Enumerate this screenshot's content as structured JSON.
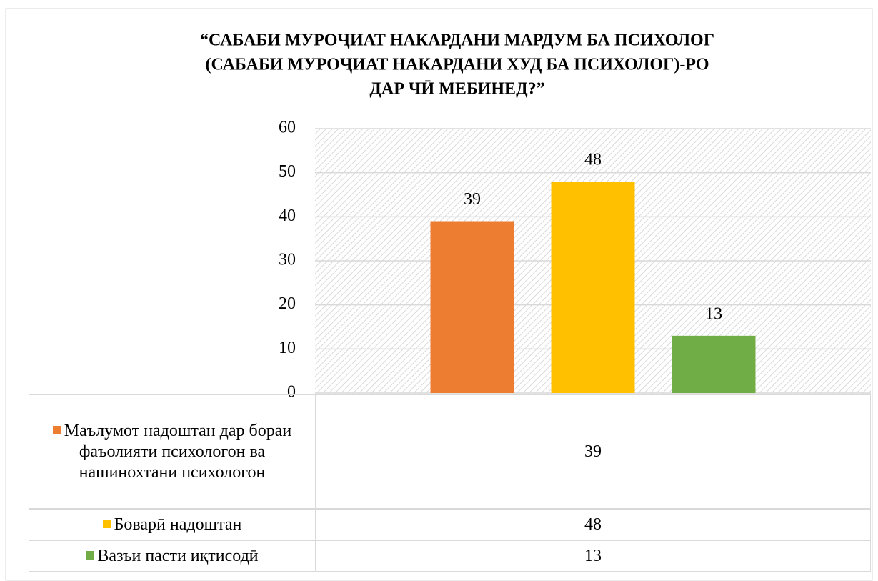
{
  "chart_data": {
    "type": "bar",
    "title": [
      "“САБАБИ МУРОҶИАТ НАКАРДАНИ МАРДУМ БА ПСИХОЛОГ",
      "(САБАБИ МУРОҶИАТ НАКАРДАНИ ХУД БА ПСИХОЛОГ)-РО",
      "ДАР ЧӢ МЕБИНЕД?”"
    ],
    "categories": [
      null
    ],
    "series": [
      {
        "name": "Маълумот надоштан дар бораи фаъолияти психологон ва нашинохтани психологон",
        "color": "#ed7d31",
        "values": [
          39
        ]
      },
      {
        "name": "Боварӣ надоштан",
        "color": "#ffc000",
        "values": [
          48
        ]
      },
      {
        "name": "Вазъи пасти иқтисодӣ",
        "color": "#70ad47",
        "values": [
          13
        ]
      }
    ],
    "ylim": [
      0,
      60
    ],
    "yticks": [
      0,
      10,
      20,
      30,
      40,
      50,
      60
    ],
    "grid": true,
    "data_labels": true,
    "data_table": true
  }
}
